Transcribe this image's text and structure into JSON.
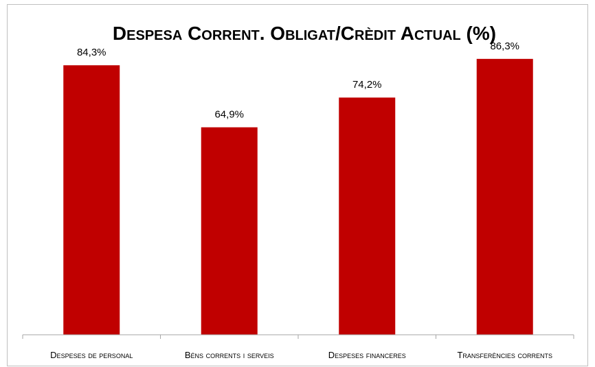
{
  "chart_data": {
    "type": "bar",
    "title": "Despesa Corrent. Obligat/Crèdit Actual (%)",
    "categories": [
      "Despeses de personal",
      "Béns corrents i serveis",
      "Despeses financeres",
      "Transferències corrents"
    ],
    "values": [
      84.3,
      64.9,
      74.2,
      86.3
    ],
    "data_labels": [
      "84,3%",
      "64,9%",
      "74,2%",
      "86,3%"
    ],
    "xlabel": "",
    "ylabel": "",
    "ylim": [
      0,
      100
    ],
    "grid": false,
    "legend": "none",
    "bar_color": "#C00000"
  }
}
